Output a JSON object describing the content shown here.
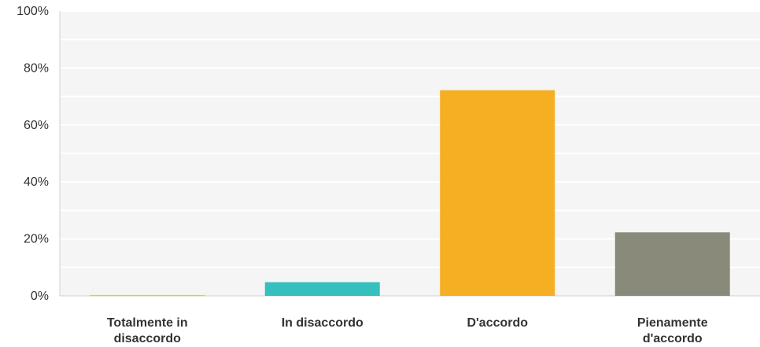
{
  "chart_data": {
    "type": "bar",
    "title": "",
    "xlabel": "",
    "ylabel": "",
    "categories": [
      [
        "Totalmente in",
        "disaccordo"
      ],
      [
        "In disaccordo"
      ],
      [
        "D'accordo"
      ],
      [
        "Pienamente",
        "d'accordo"
      ]
    ],
    "values": [
      0.3,
      4.8,
      72.2,
      22.3
    ],
    "bar_colors": [
      "#c9d44f",
      "#36bfbf",
      "#f6ae22",
      "#8a8a7a"
    ],
    "ylim": [
      0,
      100
    ],
    "yticks": [
      0,
      20,
      40,
      60,
      80,
      100
    ],
    "ytick_labels": [
      "0%",
      "20%",
      "40%",
      "60%",
      "80%",
      "100%"
    ],
    "grid": true,
    "legend": "none"
  }
}
